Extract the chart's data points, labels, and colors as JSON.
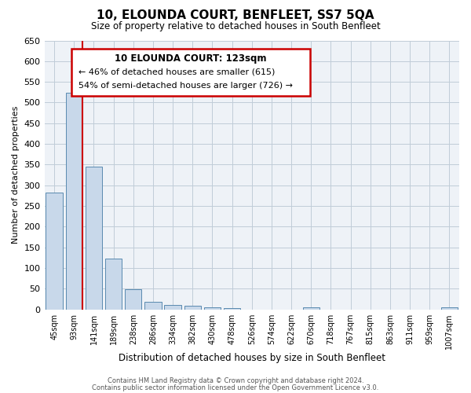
{
  "title": "10, ELOUNDA COURT, BENFLEET, SS7 5QA",
  "subtitle": "Size of property relative to detached houses in South Benfleet",
  "xlabel": "Distribution of detached houses by size in South Benfleet",
  "ylabel": "Number of detached properties",
  "bin_labels": [
    "45sqm",
    "93sqm",
    "141sqm",
    "189sqm",
    "238sqm",
    "286sqm",
    "334sqm",
    "382sqm",
    "430sqm",
    "478sqm",
    "526sqm",
    "574sqm",
    "622sqm",
    "670sqm",
    "718sqm",
    "767sqm",
    "815sqm",
    "863sqm",
    "911sqm",
    "959sqm",
    "1007sqm"
  ],
  "bar_values": [
    283,
    524,
    346,
    122,
    48,
    19,
    10,
    8,
    5,
    3,
    0,
    0,
    0,
    5,
    0,
    0,
    0,
    0,
    0,
    0,
    5
  ],
  "bar_color": "#c8d8ea",
  "bar_edge_color": "#5a8ab0",
  "vline_color": "#cc0000",
  "vline_pos": 1.43,
  "ylim": [
    0,
    650
  ],
  "yticks": [
    0,
    50,
    100,
    150,
    200,
    250,
    300,
    350,
    400,
    450,
    500,
    550,
    600,
    650
  ],
  "annotation_title": "10 ELOUNDA COURT: 123sqm",
  "annotation_line1": "← 46% of detached houses are smaller (615)",
  "annotation_line2": "54% of semi-detached houses are larger (726) →",
  "annotation_box_color": "#cc0000",
  "footer_line1": "Contains HM Land Registry data © Crown copyright and database right 2024.",
  "footer_line2": "Contains public sector information licensed under the Open Government Licence v3.0.",
  "grid_color": "#c0ccd8",
  "background_color": "#eef2f7"
}
